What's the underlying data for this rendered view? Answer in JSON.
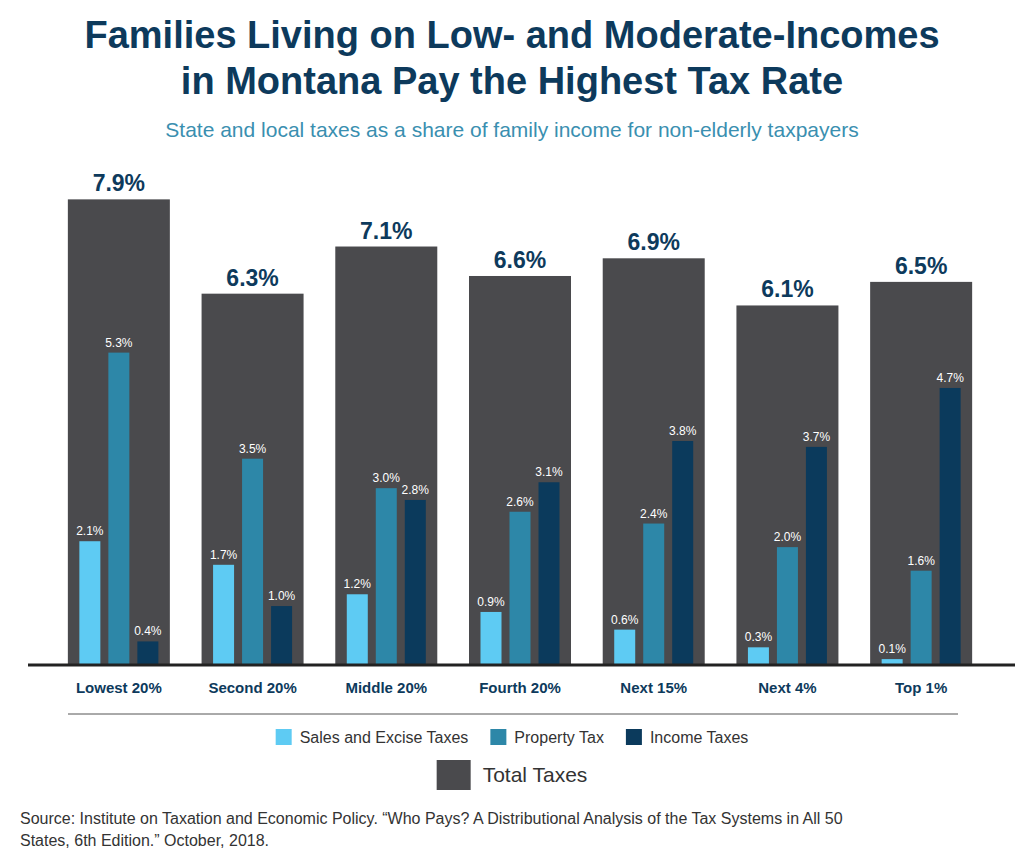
{
  "chart_data": {
    "type": "bar",
    "title": "Families Living on Low- and Moderate-Incomes\nin Montana Pay the Highest Tax Rate",
    "subtitle": "State and local taxes as a share of family income for non-elderly taxpayers",
    "categories": [
      "Lowest 20%",
      "Second 20%",
      "Middle 20%",
      "Fourth 20%",
      "Next 15%",
      "Next 4%",
      "Top 1%"
    ],
    "series": [
      {
        "name": "Total Taxes",
        "type": "total",
        "color": "#4a4a4d",
        "values": [
          7.9,
          6.3,
          7.1,
          6.6,
          6.9,
          6.1,
          6.5
        ],
        "value_labels": [
          "7.9%",
          "6.3%",
          "7.1%",
          "6.6%",
          "6.9%",
          "6.1%",
          "6.5%"
        ]
      },
      {
        "name": "Sales and Excise Taxes",
        "type": "bar",
        "color": "#5ecbf3",
        "values": [
          2.1,
          1.7,
          1.2,
          0.9,
          0.6,
          0.3,
          0.1
        ],
        "value_labels": [
          "2.1%",
          "1.7%",
          "1.2%",
          "0.9%",
          "0.6%",
          "0.3%",
          "0.1%"
        ]
      },
      {
        "name": "Property Tax",
        "type": "bar",
        "color": "#2d87a8",
        "values": [
          5.3,
          3.5,
          3.0,
          2.6,
          2.4,
          2.0,
          1.6
        ],
        "value_labels": [
          "5.3%",
          "3.5%",
          "3.0%",
          "2.6%",
          "2.4%",
          "2.0%",
          "1.6%"
        ]
      },
      {
        "name": "Income Taxes",
        "type": "bar",
        "color": "#0b3a5c",
        "values": [
          0.4,
          1.0,
          2.8,
          3.1,
          3.8,
          3.7,
          4.7
        ],
        "value_labels": [
          "0.4%",
          "1.0%",
          "2.8%",
          "3.1%",
          "3.8%",
          "3.7%",
          "4.7%"
        ]
      }
    ],
    "ylim": [
      0,
      8.5
    ],
    "grid": false,
    "tick_labels": "x",
    "data_labels": true,
    "legend": "bottom",
    "source": "Source: Institute on Taxation and Economic Policy. “Who Pays? A Distributional Analysis of the Tax Systems in All 50\nStates, 6th Edition.” October, 2018."
  }
}
